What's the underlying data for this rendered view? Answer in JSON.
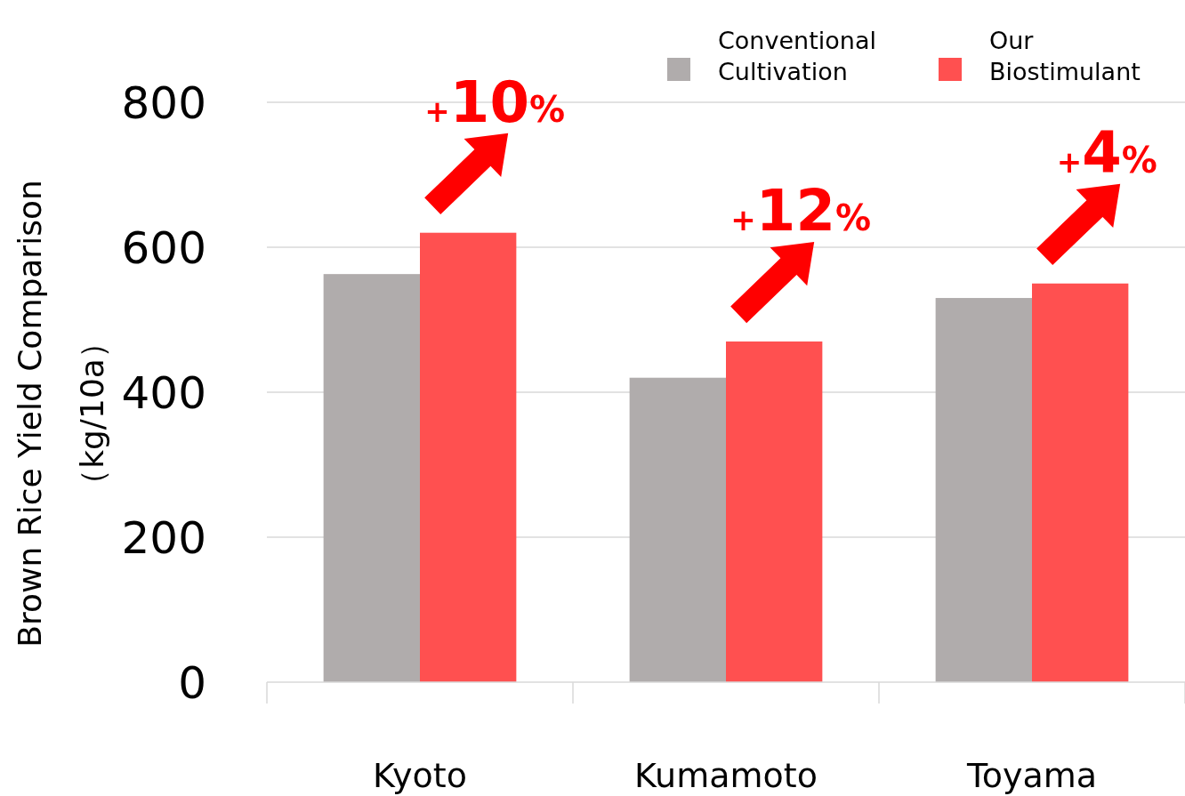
{
  "chart_data": {
    "type": "bar",
    "ylabel": "Brown Rice  Yield Comparison\n（kg/10a）",
    "categories": [
      "Kyoto",
      "Kumamoto",
      "Toyama"
    ],
    "series": [
      {
        "name": "Conventional Cultivation",
        "color": "#b0acac",
        "values": [
          563,
          420,
          530
        ]
      },
      {
        "name": "Our Biostimulant",
        "color": "#ff5050",
        "values": [
          620,
          470,
          550
        ]
      }
    ],
    "ylim": [
      0,
      800
    ],
    "yticks": [
      0,
      200,
      400,
      600,
      800
    ],
    "grid": "y",
    "legend": "top right",
    "annotations": [
      {
        "text": "+10%",
        "x": "Kyoto",
        "y": 620
      },
      {
        "text": "+12%",
        "x": "Kumamoto",
        "y": 470
      },
      {
        "text": "+4%",
        "x": "Toyama",
        "y": 550
      }
    ]
  }
}
